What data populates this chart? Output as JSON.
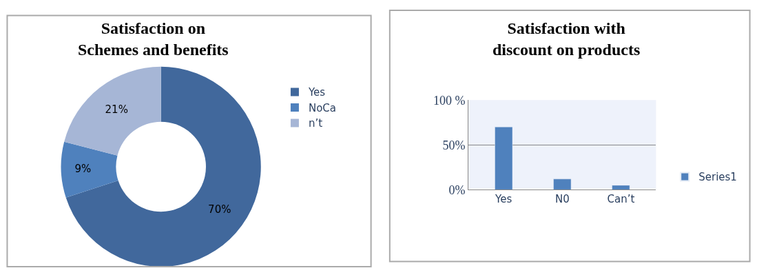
{
  "chart_data": [
    {
      "type": "donut",
      "title": "Satisfaction on\nSchemes and benefits",
      "categories": [
        "Yes",
        "NoCa",
        "n’t"
      ],
      "values": [
        70,
        9,
        21
      ],
      "colors": [
        "#41689c",
        "#4f81bd",
        "#a6b6d6"
      ],
      "value_labels": [
        "70%",
        "9%",
        "21%"
      ],
      "legend": "right"
    },
    {
      "type": "bar",
      "title": "Satisfaction with\ndiscount on products",
      "categories": [
        "Yes",
        "N0",
        "Can’t"
      ],
      "series": [
        {
          "name": "Series1",
          "color": "#4f81bd",
          "values": [
            70,
            12,
            5
          ]
        }
      ],
      "ylim": [
        0,
        100
      ],
      "yticks": [
        {
          "value": 0,
          "label": "0%"
        },
        {
          "value": 50,
          "label": "50%"
        },
        {
          "value": 100,
          "label": "100 %"
        }
      ],
      "grid": "y",
      "legend": "right"
    }
  ]
}
